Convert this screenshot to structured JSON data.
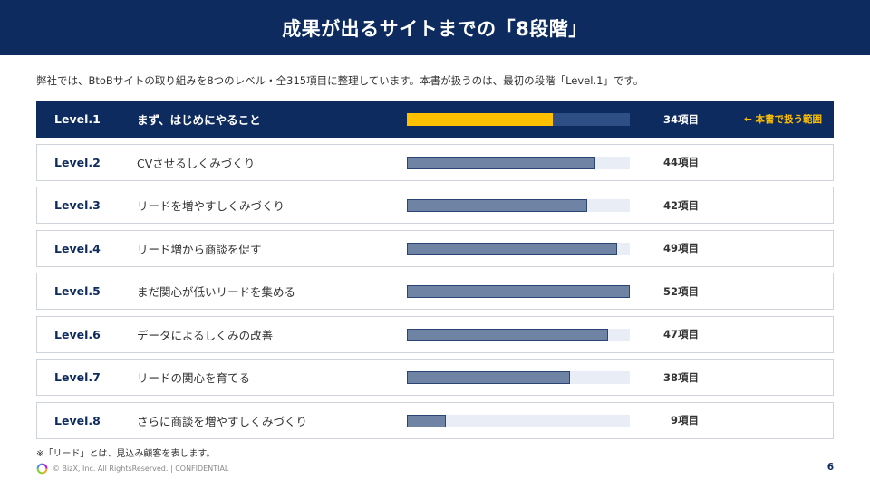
{
  "slide": {
    "title": "成果が出るサイトまでの「8段階」",
    "intro": "弊社では、BtoBサイトの取り組みを8つのレベル・全315項目に整理しています。本書が扱うのは、最初の段階「Level.1」です。",
    "footnote": "※「リード」とは、見込み顧客を表します。",
    "copyright": "© BizX, Inc. All RightsReserved. | CONFIDENTIAL",
    "page_number": "6",
    "logo_icon": "ring-logo-icon"
  },
  "colors": {
    "navy": "#0d2b5e",
    "accent": "#ffc000",
    "bar_fill": "#6f83a4",
    "bar_track": "#e9edf5"
  },
  "levels": [
    {
      "level": "Level.1",
      "title": "まず、はじめにやること",
      "count": "34項目",
      "value": 34,
      "active": true,
      "note": "← 本書で扱う範囲"
    },
    {
      "level": "Level.2",
      "title": "CVさせるしくみづくり",
      "count": "44項目",
      "value": 44
    },
    {
      "level": "Level.3",
      "title": "リードを増やすしくみづくり",
      "count": "42項目",
      "value": 42
    },
    {
      "level": "Level.4",
      "title": "リード増から商談を促す",
      "count": "49項目",
      "value": 49
    },
    {
      "level": "Level.5",
      "title": "まだ関心が低いリードを集める",
      "count": "52項目",
      "value": 52
    },
    {
      "level": "Level.6",
      "title": "データによるしくみの改善",
      "count": "47項目",
      "value": 47
    },
    {
      "level": "Level.7",
      "title": "リードの関心を育てる",
      "count": "38項目",
      "value": 38
    },
    {
      "level": "Level.8",
      "title": "さらに商談を増やすしくみづくり",
      "count": "9項目",
      "value": 9
    }
  ]
}
